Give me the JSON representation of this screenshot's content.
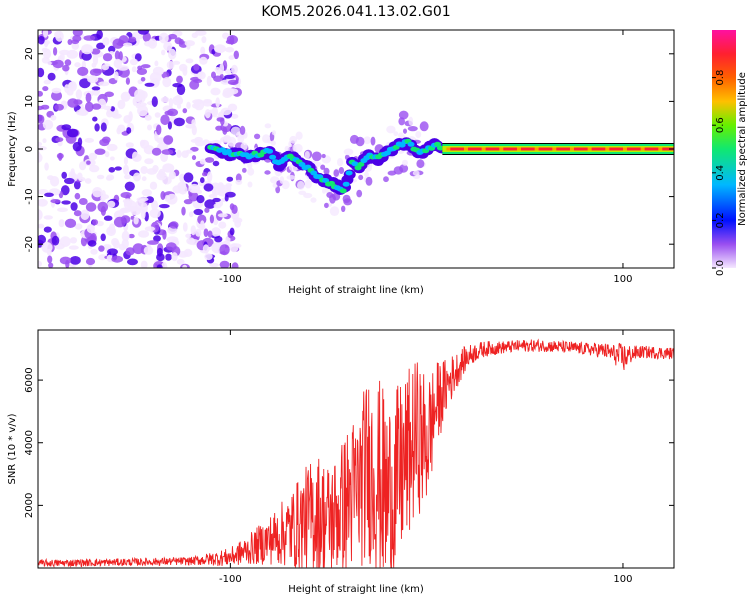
{
  "title": "KOM5.2026.041.13.02.G01",
  "colors": {
    "snr_line": "#ee2222",
    "spectrum_colormap": [
      "#f5e8ff",
      "#9a4ff0",
      "#4b00e6",
      "#0010ff",
      "#00b8ff",
      "#10e870",
      "#b8f000",
      "#ff9a00",
      "#ff2030",
      "#ff10a0"
    ]
  },
  "chart_data": [
    {
      "id": "spectrum",
      "type": "heatmap",
      "xlabel": "Height of straight line (km)",
      "ylabel": "Frequency (Hz)",
      "xlim": [
        -198,
        126
      ],
      "ylim": [
        -25,
        25
      ],
      "x_ticks": [
        -100,
        100
      ],
      "y_ticks": [
        -20,
        -10,
        0,
        10,
        20
      ],
      "colorbar": {
        "label": "Normalized spectral amplitude",
        "range": [
          0,
          1
        ],
        "ticks": [
          0.0,
          0.2,
          0.4,
          0.6,
          0.8
        ]
      },
      "ridge": {
        "description": "dominant frequency track vs height",
        "x": [
          -110,
          -100,
          -90,
          -80,
          -75,
          -70,
          -65,
          -60,
          -55,
          -50,
          -45,
          -42,
          -38,
          -35,
          -30,
          -25,
          -20,
          -15,
          -10,
          -7,
          -4,
          0,
          5,
          10,
          20,
          40,
          80,
          126
        ],
        "freq": [
          0.5,
          -1.0,
          -1.5,
          -0.5,
          -3.5,
          -1.0,
          -3.0,
          -4.0,
          -6.0,
          -7.0,
          -8.0,
          -9.0,
          -3.0,
          -4.0,
          -1.5,
          -2.0,
          -0.5,
          0.5,
          1.5,
          0.5,
          -1.0,
          0.0,
          1.0,
          0.0,
          0.0,
          0.0,
          0.0,
          0.0
        ]
      },
      "noise_region_x": [
        -198,
        -100
      ]
    },
    {
      "id": "snr",
      "type": "line",
      "xlabel": "Height of straight line (km)",
      "ylabel": "SNR (10 * v/v)",
      "xlim": [
        -198,
        126
      ],
      "ylim": [
        0,
        7600
      ],
      "x_ticks": [
        -100,
        100
      ],
      "y_ticks": [
        2000,
        4000,
        6000
      ],
      "envelope": {
        "x": [
          -198,
          -160,
          -120,
          -100,
          -90,
          -80,
          -70,
          -60,
          -55,
          -50,
          -45,
          -40,
          -35,
          -30,
          -25,
          -20,
          -15,
          -10,
          -5,
          0,
          5,
          10,
          15,
          20,
          25,
          30,
          40,
          50,
          60,
          70,
          80,
          90,
          95,
          100,
          105,
          110,
          126
        ],
        "mean": [
          150,
          180,
          220,
          350,
          600,
          900,
          1200,
          1600,
          1700,
          1500,
          1800,
          2200,
          2500,
          3200,
          3000,
          2200,
          2800,
          3500,
          4200,
          4000,
          5200,
          5800,
          6300,
          6700,
          6900,
          7000,
          7050,
          7100,
          7100,
          7050,
          7000,
          6950,
          6850,
          6700,
          6850,
          6900,
          6850
        ],
        "spread": [
          120,
          120,
          130,
          300,
          500,
          800,
          1200,
          1800,
          2000,
          1900,
          2000,
          2400,
          2600,
          3000,
          3200,
          3300,
          3000,
          2800,
          2500,
          2200,
          1400,
          900,
          600,
          400,
          300,
          250,
          200,
          200,
          200,
          200,
          200,
          250,
          300,
          500,
          250,
          200,
          200
        ]
      }
    }
  ]
}
